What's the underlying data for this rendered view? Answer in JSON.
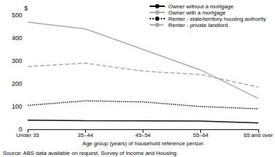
{
  "chart_data": {
    "type": "line",
    "ylabel": "$",
    "xlabel": "Age group (years) of household reference person",
    "annotations": [
      "Source: ABS data available on request, Survey of Income and Housing."
    ],
    "categories": [
      "Under 35",
      "35–44",
      "45–54",
      "55–64",
      "65 and over"
    ],
    "ylim": [
      0,
      500
    ],
    "yticks": [
      0,
      100,
      200,
      300,
      400,
      500
    ],
    "grid": false,
    "legend": "top-right",
    "series": [
      {
        "name": "Owner without a mortgage",
        "color": "#000000",
        "line_style": "solid",
        "values": [
          40,
          38,
          37,
          36,
          28
        ]
      },
      {
        "name": "Owner with a mortgage",
        "color": "#a6a6a6",
        "line_style": "solid",
        "values": [
          470,
          440,
          350,
          260,
          135
        ]
      },
      {
        "name": "Renter - state/territory housing authority",
        "color": "#000000",
        "line_style": "dotted",
        "values": [
          105,
          125,
          120,
          100,
          90
        ]
      },
      {
        "name": "Renter - private landlord",
        "color": "#a6a6a6",
        "line_style": "dashed",
        "values": [
          275,
          290,
          255,
          240,
          185
        ]
      }
    ]
  }
}
